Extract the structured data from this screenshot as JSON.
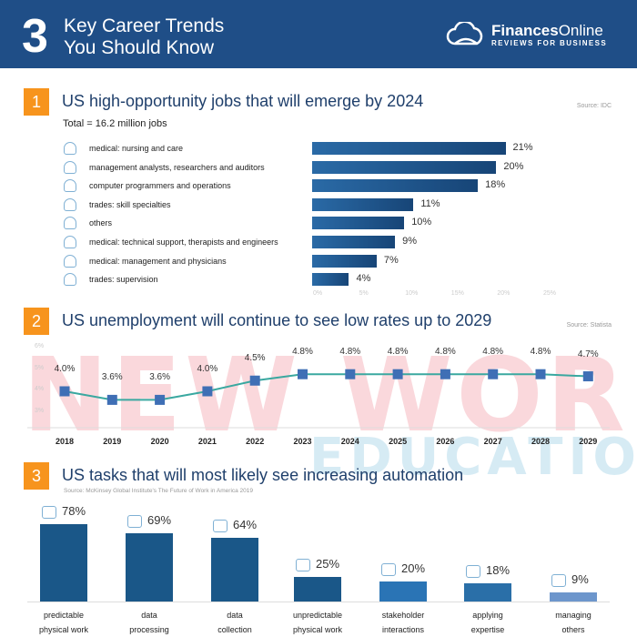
{
  "header": {
    "number": "3",
    "title_line1": "Key Career Trends",
    "title_line2": "You Should Know",
    "brand_bold": "Finances",
    "brand_light": "Online",
    "brand_sub": "REVIEWS FOR BUSINESS"
  },
  "watermark": {
    "line1": "NEW WORLD",
    "line2": "EDUCATION"
  },
  "sections": [
    {
      "number": "1",
      "title": "US high-opportunity jobs that will emerge by 2024",
      "subtitle": "Total = 16.2 million jobs",
      "source": "Source: IDC"
    },
    {
      "number": "2",
      "title": "US unemployment will continue to see low rates up to 2029",
      "source": "Source: Statista"
    },
    {
      "number": "3",
      "title": "US tasks that will most likely see increasing automation",
      "source": "Source: McKinsey Global Institute's The Future of Work in America 2019"
    }
  ],
  "colors": {
    "header": "#1f4e87",
    "badge": "#f7941d",
    "bar": "#1f5f96",
    "line": "#3aa8a0",
    "marker": "#3f6fb5"
  },
  "chart_data": [
    {
      "type": "bar",
      "orientation": "horizontal",
      "categories": [
        "medical: nursing and care",
        "management analysts, researchers and auditors",
        "computer programmers and operations",
        "trades: skill specialties",
        "others",
        "medical: technical support, therapists and engineers",
        "medical: management and physicians",
        "trades: supervision"
      ],
      "values": [
        21,
        20,
        18,
        11,
        10,
        9,
        7,
        4
      ],
      "value_labels": [
        "21%",
        "20%",
        "18%",
        "11%",
        "10%",
        "9%",
        "7%",
        "4%"
      ],
      "xticks": [
        "0%",
        "5%",
        "10%",
        "15%",
        "20%",
        "25%"
      ],
      "xlim": [
        0,
        25
      ]
    },
    {
      "type": "line",
      "x": [
        "2018",
        "2019",
        "2020",
        "2021",
        "2022",
        "2023",
        "2024",
        "2025",
        "2026",
        "2027",
        "2028",
        "2029"
      ],
      "values": [
        4.0,
        3.6,
        3.6,
        4.0,
        4.5,
        4.8,
        4.8,
        4.8,
        4.8,
        4.8,
        4.8,
        4.7
      ],
      "value_labels": [
        "4.0%",
        "3.6%",
        "3.6%",
        "4.0%",
        "4.5%",
        "4.8%",
        "4.8%",
        "4.8%",
        "4.8%",
        "4.8%",
        "4.8%",
        "4.7%"
      ],
      "yticks": [
        "6%",
        "5%",
        "4%",
        "3%"
      ],
      "ylim": [
        2,
        6
      ]
    },
    {
      "type": "bar",
      "categories": [
        [
          "predictable",
          "physical work"
        ],
        [
          "data",
          "processing"
        ],
        [
          "data",
          "collection"
        ],
        [
          "unpredictable",
          "physical work"
        ],
        [
          "stakeholder",
          "interactions"
        ],
        [
          "applying",
          "expertise"
        ],
        [
          "managing",
          "others"
        ]
      ],
      "values": [
        78,
        69,
        64,
        25,
        20,
        18,
        9
      ],
      "value_labels": [
        "78%",
        "69%",
        "64%",
        "25%",
        "20%",
        "18%",
        "9%"
      ],
      "ylim": [
        0,
        80
      ]
    }
  ]
}
